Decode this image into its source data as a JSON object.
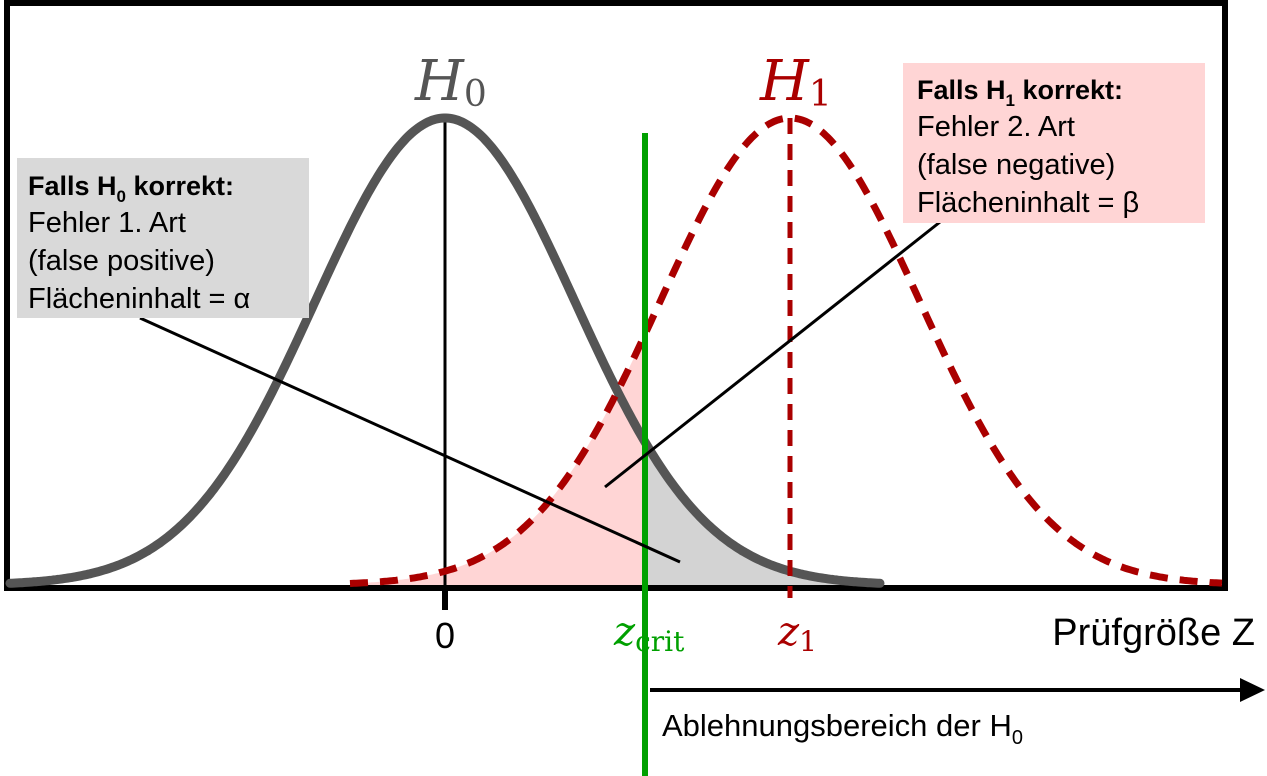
{
  "hypotheses": {
    "h0_symbol": "H",
    "h0_sub": "0",
    "h1_symbol": "H",
    "h1_sub": "1"
  },
  "box_h0": {
    "title_prefix": "Falls H",
    "title_sub": "0",
    "title_suffix": " korrekt:",
    "line1": "Fehler 1. Art",
    "line2": "(false positive)",
    "line3": "Flächeninhalt = α"
  },
  "box_h1": {
    "title_prefix": "Falls H",
    "title_sub": "1",
    "title_suffix": " korrekt:",
    "line1": "Fehler 2. Art",
    "line2": "(false negative)",
    "line3": "Flächeninhalt = β"
  },
  "axis": {
    "zero_label": "0",
    "zcrit_main": "z",
    "zcrit_sub": "crit",
    "z1_main": "z",
    "z1_sub": "1",
    "axis_title": "Prüfgröße Z"
  },
  "rejection": {
    "prefix": "Ablehnungsbereich der H",
    "sub": "0"
  },
  "colors": {
    "h0_curve": "#555555",
    "h1_curve": "#aa0000",
    "critical_line": "#00a000",
    "beta_fill": "#ffd5d5",
    "alpha_fill": "#d3d3d3",
    "box_h0_bg": "#d9d9d9",
    "box_h1_bg": "#ffd5d5"
  }
}
